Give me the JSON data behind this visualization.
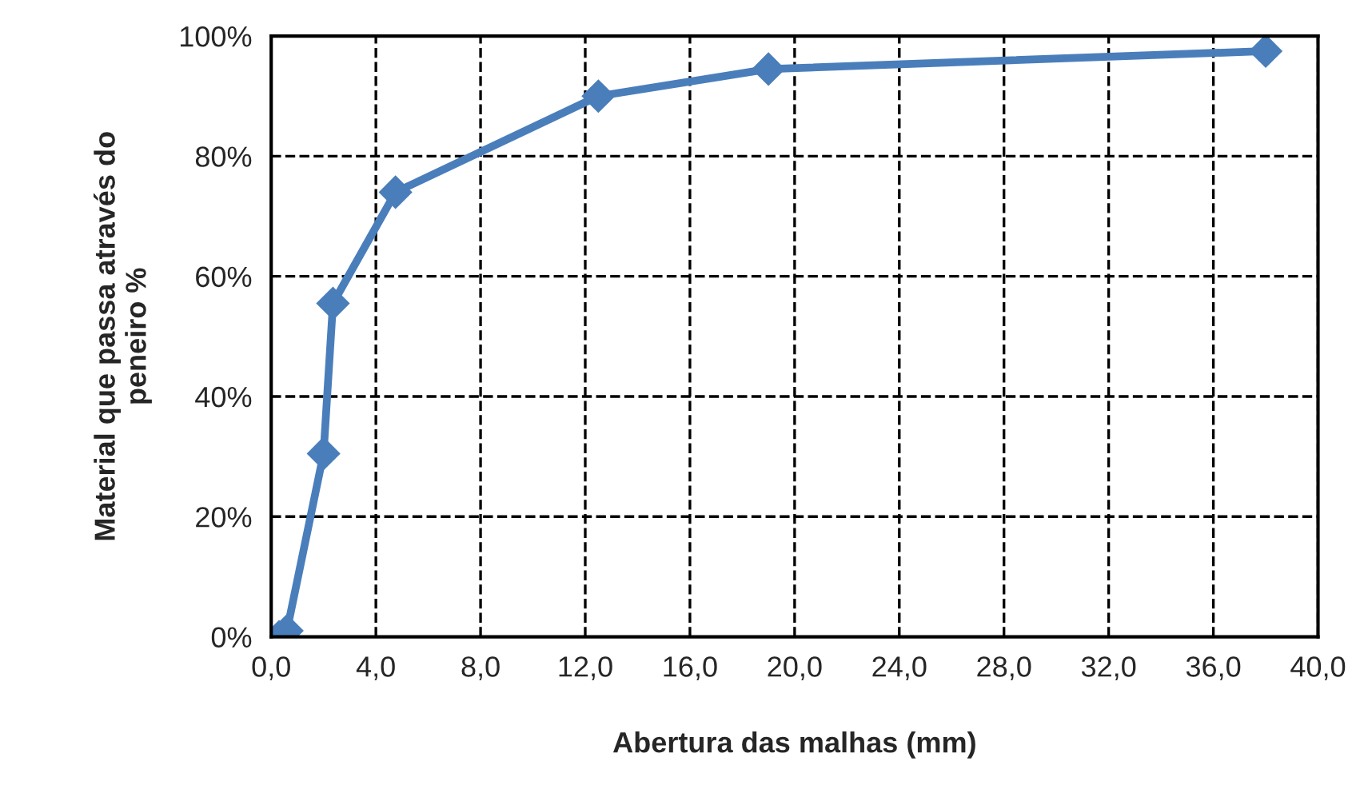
{
  "chart_data": {
    "type": "line",
    "xlabel": "Abertura das malhas (mm)",
    "ylabel": "Material que passa através do\npeneiro %",
    "x": [
      0.3,
      0.6,
      2.0,
      2.36,
      4.75,
      12.5,
      19.0,
      38.0
    ],
    "series": [
      {
        "color": "#4a7ebb",
        "values": [
          0,
          1,
          30.5,
          55.5,
          74,
          90,
          94.5,
          97.5
        ]
      }
    ],
    "xlim": [
      0,
      40
    ],
    "xticks": [
      {
        "value": 0,
        "label": "0,0"
      },
      {
        "value": 4,
        "label": "4,0"
      },
      {
        "value": 8,
        "label": "8,0"
      },
      {
        "value": 12,
        "label": "12,0"
      },
      {
        "value": 16,
        "label": "16,0"
      },
      {
        "value": 20,
        "label": "20,0"
      },
      {
        "value": 24,
        "label": "24,0"
      },
      {
        "value": 28,
        "label": "28,0"
      },
      {
        "value": 32,
        "label": "32,0"
      },
      {
        "value": 36,
        "label": "36,0"
      },
      {
        "value": 40,
        "label": "40,0"
      }
    ],
    "ylim": [
      0,
      100
    ],
    "yticks": [
      {
        "value": 0,
        "label": "0%"
      },
      {
        "value": 20,
        "label": "20%"
      },
      {
        "value": 40,
        "label": "40%"
      },
      {
        "value": 60,
        "label": "60%"
      },
      {
        "value": 80,
        "label": "80%"
      },
      {
        "value": 100,
        "label": "100%"
      }
    ],
    "grid": true,
    "marker": "diamond",
    "line_style": "solid"
  }
}
